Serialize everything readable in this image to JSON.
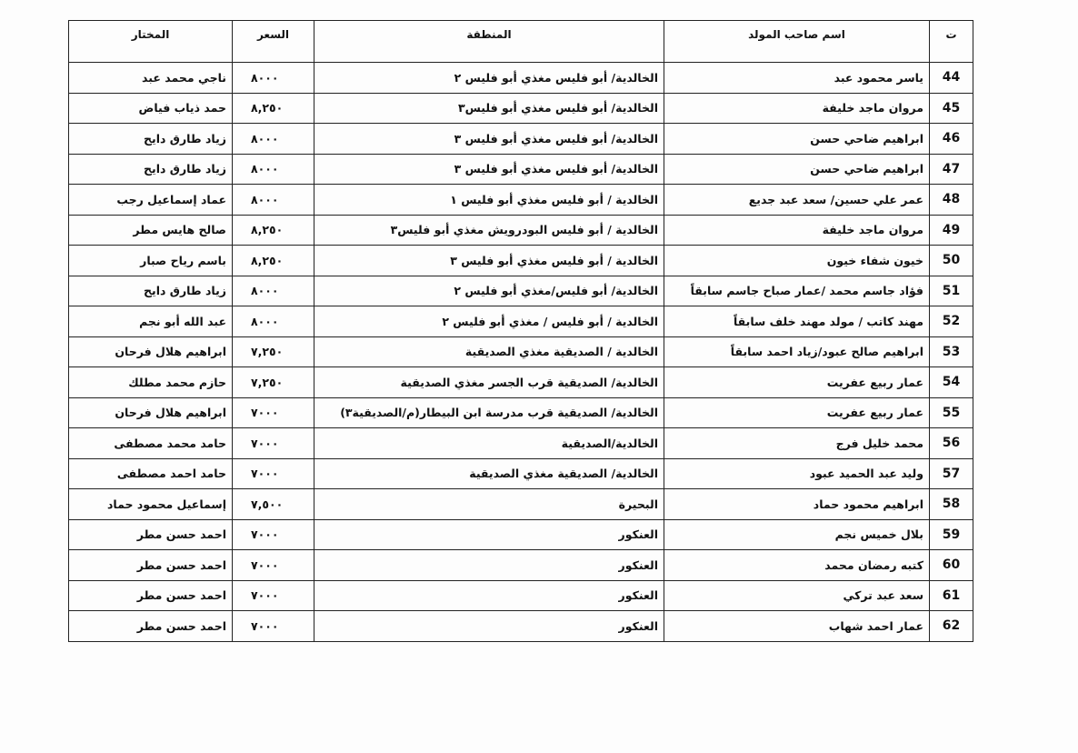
{
  "table": {
    "header": [
      "ت",
      "اسم صاحب المولد",
      "المنطقة",
      "السعر",
      "المختار"
    ],
    "rows": [
      [
        44,
        "ياسر محمود عبد",
        "الخالدية/ أبو فليس مغذي أبو فليس ٢",
        "٨٠٠٠",
        "ناجي محمد عبد"
      ],
      [
        45,
        "مروان ماجد خليفة",
        "الخالدية/ أبو فليس مغذي أبو فليس٣",
        "٨,٢٥٠",
        "حمد ذياب فياض"
      ],
      [
        46,
        "ابراهيم ضاحي حسن",
        "الخالدية/ أبو فليس مغذي أبو فليس ٣",
        "٨٠٠٠",
        "زياد طارق دايح"
      ],
      [
        47,
        "ابراهيم ضاحي حسن",
        "الخالدية/ أبو فليس مغذي أبو فليس ٣",
        "٨٠٠٠",
        "زياد طارق دايح"
      ],
      [
        48,
        "عمر علي حسين/ سعد عبد جديع",
        "الخالدية / أبو فليس مغذي أبو فليس ١",
        "٨٠٠٠",
        "عماد إسماعيل رجب"
      ],
      [
        49,
        "مروان ماجد خليفة",
        "الخالدية / أبو فليس البودرويش مغذي أبو فليس٣",
        "٨,٢٥٠",
        "صالح هايس مطر"
      ],
      [
        50,
        "خيون شفاء خيون",
        "الخالدية / أبو فليس مغذي أبو فليس ٣",
        "٨,٢٥٠",
        "باسم رياح صبار"
      ],
      [
        51,
        "فؤاد جاسم محمد /عمار صباح جاسم سابقاً",
        "الخالدية/ أبو فليس/مغذي أبو فليس ٢",
        "٨٠٠٠",
        "زياد طارق دايح"
      ],
      [
        52,
        "مهند كاتب / مولد مهند خلف سابقاً",
        "الخالدية / أبو فليس / مغذي أبو فليس ٢",
        "٨٠٠٠",
        "عبد الله أبو نجم"
      ],
      [
        53,
        "ابراهيم صالح عبود/زياد احمد سابقاً",
        "الخالدية / الصديقية مغذي الصديقية",
        "٧,٢٥٠",
        "ابراهيم هلال فرحان"
      ],
      [
        54,
        "عمار ربيع عفريت",
        "الخالدية/ الصديقية قرب الجسر مغذي الصديقية",
        "٧,٢٥٠",
        "حازم محمد مطلك"
      ],
      [
        55,
        "عمار ربيع عفريت",
        "الخالدية/ الصديقية قرب مدرسة ابن البيطار(م/الصديقية٣)",
        "٧٠٠٠",
        "ابراهيم هلال فرحان"
      ],
      [
        56,
        "محمد خليل فرج",
        "الخالدية/الصديقية",
        "٧٠٠٠",
        "حامد محمد مصطفى"
      ],
      [
        57,
        "وليد عبد الحميد عبود",
        "الخالدية/ الصديقية مغذي الصديقية",
        "٧٠٠٠",
        "حامد احمد مصطفى"
      ],
      [
        58,
        "ابراهيم محمود حماد",
        "البحيرة",
        "٧,٥٠٠",
        "إسماعيل محمود حماد"
      ],
      [
        59,
        "بلال خميس نجم",
        "العنكور",
        "٧٠٠٠",
        "احمد حسن مطر"
      ],
      [
        60,
        "كتبه رمضان محمد",
        "العنكور",
        "٧٠٠٠",
        "احمد حسن مطر"
      ],
      [
        61,
        "سعد عبد تركي",
        "العنكور",
        "٧٠٠٠",
        "احمد حسن مطر"
      ],
      [
        62,
        "عمار احمد شهاب",
        "العنكور",
        "٧٠٠٠",
        "احمد حسن مطر"
      ]
    ]
  }
}
